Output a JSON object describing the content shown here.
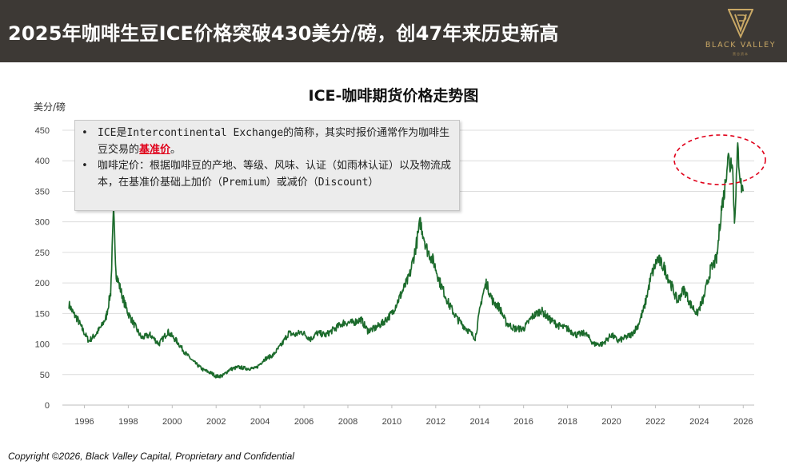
{
  "header": {
    "title": "2025年咖啡生豆ICE价格突破430美分/磅，创47年来历史新高",
    "logo_text": "BLACK VALLEY",
    "logo_subtext": "黑谷资本"
  },
  "info_box": {
    "line1_prefix": "ICE是Intercontinental Exchange的简称，其实时报价通常作为咖啡生豆交易的",
    "line1_highlight": "基准价",
    "line1_suffix": "。",
    "line2": "咖啡定价：根据咖啡豆的产地、等级、风味、认证（如雨林认证）以及物流成本，在基准价基础上加价（Premium）或减价（Discount）"
  },
  "footer": {
    "text": "Copyright ©2026, Black Valley Capital, Proprietary and Confidential"
  },
  "colors": {
    "header_bg": "#3d3935",
    "line": "#1c6b2c",
    "highlight": "#e0001a",
    "gold": "#c9a865"
  },
  "chart_data": {
    "type": "line",
    "title": "ICE-咖啡期货价格走势图",
    "ylabel": "美分/磅",
    "xlabel": "",
    "ylim": [
      0,
      450
    ],
    "yticks": [
      0,
      50,
      100,
      150,
      200,
      250,
      300,
      350,
      400,
      450
    ],
    "xlim": [
      1995,
      2026.5
    ],
    "xticks": [
      1996,
      1998,
      2000,
      2002,
      2004,
      2006,
      2008,
      2010,
      2012,
      2014,
      2016,
      2018,
      2020,
      2022,
      2024,
      2026
    ],
    "grid": true,
    "annotation": "dashed red ellipse highlighting 2025 peak",
    "x": [
      1995.3,
      1995.5,
      1995.7,
      1995.9,
      1996.2,
      1996.5,
      1996.8,
      1997.0,
      1997.2,
      1997.33,
      1997.45,
      1997.6,
      1997.8,
      1998.0,
      1998.3,
      1998.6,
      1999.0,
      1999.4,
      1999.8,
      2000.2,
      2000.6,
      2001.0,
      2001.4,
      2001.8,
      2002.0,
      2002.3,
      2002.6,
      2003.0,
      2003.4,
      2003.8,
      2004.2,
      2004.6,
      2005.0,
      2005.3,
      2005.6,
      2005.9,
      2006.3,
      2006.6,
      2007.0,
      2007.4,
      2007.8,
      2008.2,
      2008.6,
      2008.9,
      2009.2,
      2009.6,
      2010.0,
      2010.4,
      2010.8,
      2011.1,
      2011.3,
      2011.6,
      2011.9,
      2012.2,
      2012.6,
      2013.0,
      2013.4,
      2013.8,
      2014.1,
      2014.3,
      2014.6,
      2014.9,
      2015.2,
      2015.6,
      2016.0,
      2016.4,
      2016.8,
      2017.2,
      2017.6,
      2018.0,
      2018.4,
      2018.8,
      2019.2,
      2019.6,
      2020.0,
      2020.3,
      2020.6,
      2020.9,
      2021.2,
      2021.5,
      2021.8,
      2022.1,
      2022.4,
      2022.8,
      2023.0,
      2023.3,
      2023.6,
      2023.9,
      2024.2,
      2024.5,
      2024.8,
      2025.0,
      2025.15,
      2025.3,
      2025.4,
      2025.5,
      2025.6,
      2025.75,
      2025.9,
      2026.0
    ],
    "series": [
      {
        "values": [
          165,
          150,
          140,
          125,
          105,
          115,
          130,
          145,
          185,
          315,
          215,
          195,
          170,
          150,
          130,
          110,
          115,
          100,
          120,
          105,
          85,
          70,
          58,
          52,
          47,
          48,
          58,
          62,
          60,
          60,
          75,
          82,
          100,
          118,
          115,
          120,
          108,
          118,
          115,
          125,
          135,
          135,
          140,
          122,
          125,
          135,
          150,
          180,
          210,
          260,
          300,
          255,
          235,
          200,
          165,
          140,
          125,
          110,
          175,
          200,
          170,
          160,
          135,
          125,
          125,
          145,
          155,
          140,
          130,
          125,
          115,
          118,
          100,
          100,
          115,
          105,
          110,
          115,
          130,
          160,
          210,
          240,
          225,
          190,
          170,
          190,
          165,
          150,
          175,
          220,
          240,
          320,
          350,
          410,
          390,
          410,
          300,
          420,
          360,
          350
        ]
      }
    ]
  }
}
